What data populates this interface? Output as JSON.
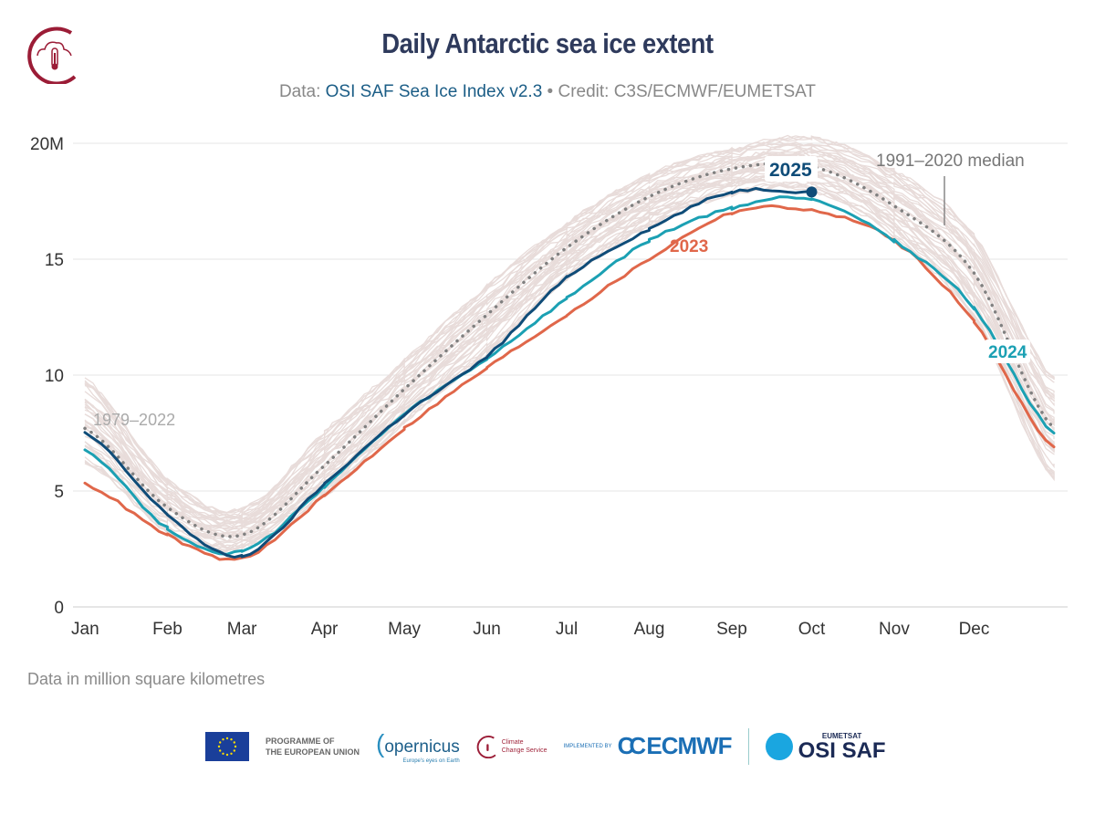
{
  "header": {
    "title": "Daily Antarctic sea ice extent",
    "subtitle_prefix": "Data: ",
    "subtitle_source": "OSI SAF Sea Ice Index v2.3",
    "subtitle_credit": " • Credit: C3S/ECMWF/EUMETSAT"
  },
  "note": "Data in million square kilometres",
  "footer": {
    "eu_text_1": "PROGRAMME OF",
    "eu_text_2": "THE EUROPEAN UNION",
    "copernicus": "opernicus",
    "copernicus_tagline": "Europe's eyes on Earth",
    "ccs_1": "Climate",
    "ccs_2": "Change Service",
    "implemented_by": "IMPLEMENTED BY",
    "ecmwf": "ECMWF",
    "eumetsat": "EUMETSAT",
    "osisaf": "OSI SAF"
  },
  "chart_data": {
    "type": "line",
    "title": "Daily Antarctic sea ice extent",
    "ylabel": "",
    "xlabel": "",
    "unit": "million square kilometres",
    "ylim": [
      0,
      20
    ],
    "yticks": [
      0,
      5,
      10,
      15,
      20
    ],
    "ytick_labels": [
      "0",
      "5",
      "10",
      "15",
      "20M"
    ],
    "xtick_labels": [
      "Jan",
      "Feb",
      "Mar",
      "Apr",
      "May",
      "Jun",
      "Jul",
      "Aug",
      "Sep",
      "Oct",
      "Nov",
      "Dec"
    ],
    "grid": "horizontal",
    "x": [
      "01-01",
      "02-01",
      "03-01",
      "04-01",
      "05-01",
      "06-01",
      "07-01",
      "08-01",
      "09-01",
      "10-01",
      "11-01",
      "12-01",
      "12-31"
    ],
    "background_range": {
      "label": "1979–2022",
      "min": [
        6.3,
        3.3,
        2.6,
        4.8,
        8.0,
        11.0,
        14.2,
        16.5,
        17.8,
        18.0,
        16.0,
        12.5,
        5.6
      ],
      "max": [
        9.8,
        5.5,
        4.2,
        7.5,
        10.6,
        13.8,
        16.5,
        18.6,
        19.7,
        20.2,
        18.8,
        16.0,
        9.9
      ],
      "color": "#e8dcda"
    },
    "series": [
      {
        "name": "1991–2020 median",
        "style": "dotted",
        "color": "#808080",
        "values": [
          7.7,
          4.3,
          3.1,
          6.1,
          9.4,
          12.6,
          15.5,
          17.7,
          18.9,
          19.0,
          17.3,
          14.4,
          7.7
        ]
      },
      {
        "name": "2023",
        "color": "#e0674a",
        "values": [
          5.3,
          3.1,
          2.1,
          4.8,
          7.7,
          10.3,
          12.6,
          15.0,
          17.0,
          17.1,
          15.8,
          12.3,
          6.9
        ]
      },
      {
        "name": "2024",
        "color": "#1ba0b3",
        "values": [
          6.8,
          3.4,
          2.4,
          5.2,
          8.3,
          10.7,
          13.3,
          15.8,
          17.2,
          17.6,
          15.8,
          12.9,
          7.5
        ]
      },
      {
        "name": "2025",
        "color": "#0f4c78",
        "values": [
          7.5,
          4.0,
          2.2,
          5.3,
          8.3,
          10.8,
          14.2,
          16.3,
          17.9,
          17.9,
          null,
          null,
          null
        ]
      }
    ]
  }
}
